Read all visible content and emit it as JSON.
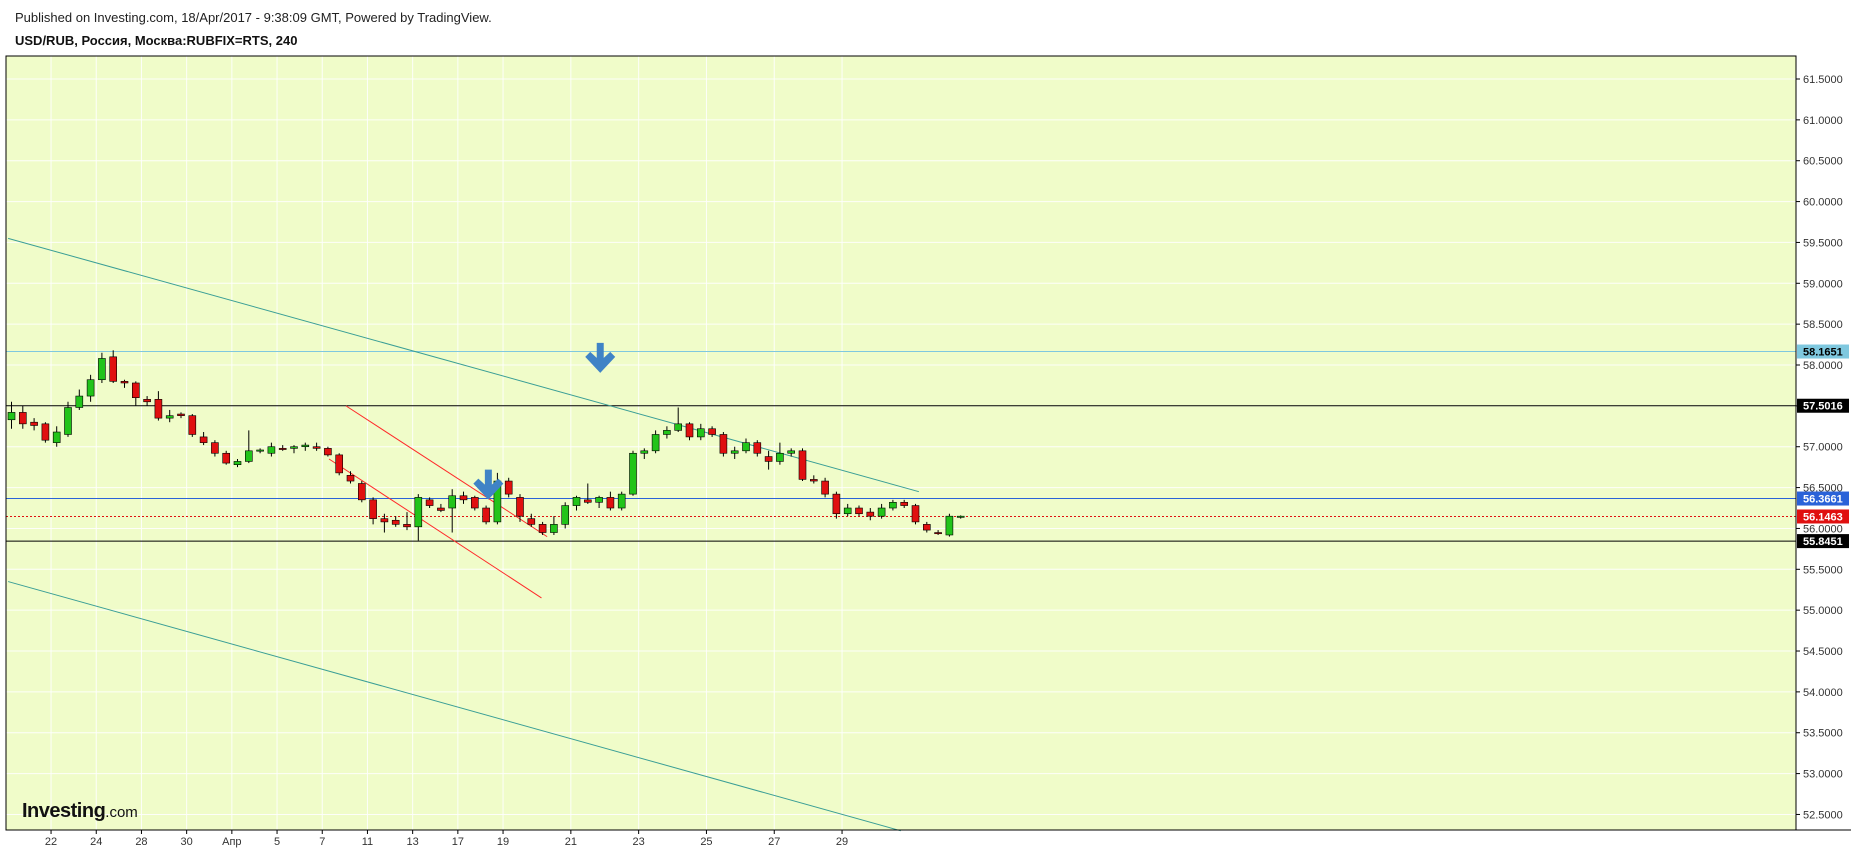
{
  "header": {
    "published": "Published on Investing.com, 18/Apr/2017 - 9:38:09 GMT, Powered by TradingView.",
    "symbol": "USD/RUB, Россия, Москва:RUBFIX=RTS, 240"
  },
  "logo": {
    "brand": "Investing",
    "suffix": ".com"
  },
  "colors": {
    "plot_bg": "#f0fcc9",
    "up": "#22c41a",
    "down": "#e01010",
    "channel_long": "#3a9e96",
    "channel_short": "#ff2a2a",
    "hline_black": "#000000",
    "hline_blue": "#2a62d8",
    "hline_lightblue": "#7fc8df",
    "arrow": "#3f83c6"
  },
  "chart_data": {
    "type": "candlestick",
    "title": "USD/RUB, Россия, Москва:RUBFIX=RTS, 240",
    "ylim": [
      52.25,
      61.75
    ],
    "y_ticks": [
      "52.5000",
      "53.0000",
      "53.5000",
      "54.0000",
      "54.5000",
      "55.0000",
      "55.5000",
      "56.0000",
      "56.5000",
      "57.0000",
      "57.5000",
      "58.0000",
      "58.5000",
      "59.0000",
      "59.5000",
      "60.0000",
      "60.5000",
      "61.0000",
      "61.5000"
    ],
    "x_ticks": [
      {
        "label": "22",
        "i": 3.5
      },
      {
        "label": "24",
        "i": 7.5
      },
      {
        "label": "28",
        "i": 11.5
      },
      {
        "label": "30",
        "i": 15.5
      },
      {
        "label": "Апр",
        "i": 19.5
      },
      {
        "label": "5",
        "i": 23.5
      },
      {
        "label": "7",
        "i": 27.5
      },
      {
        "label": "11",
        "i": 31.5
      },
      {
        "label": "13",
        "i": 35.5
      },
      {
        "label": "17",
        "i": 39.5
      },
      {
        "label": "19",
        "i": 43.5
      },
      {
        "label": "21",
        "i": 49.5
      },
      {
        "label": "23",
        "i": 55.5
      },
      {
        "label": "25",
        "i": 61.5
      },
      {
        "label": "27",
        "i": 67.5
      },
      {
        "label": "29",
        "i": 73.5
      }
    ],
    "price_tags": [
      {
        "value": 58.1651,
        "label": "58.1651",
        "bg": "#7fc8df",
        "fg": "#000000"
      },
      {
        "value": 57.5016,
        "label": "57.5016",
        "bg": "#000000",
        "fg": "#ffffff"
      },
      {
        "value": 56.3661,
        "label": "56.3661",
        "bg": "#2a62d8",
        "fg": "#ffffff"
      },
      {
        "value": 56.1463,
        "label": "56.1463",
        "bg": "#e01010",
        "fg": "#ffffff"
      },
      {
        "value": 55.8451,
        "label": "55.8451",
        "bg": "#000000",
        "fg": "#ffffff"
      }
    ],
    "horizontal_lines": [
      {
        "value": 58.1651,
        "color": "#7fc8df",
        "dash": false
      },
      {
        "value": 57.5016,
        "color": "#000000",
        "dash": false
      },
      {
        "value": 56.3661,
        "color": "#2a62d8",
        "dash": false
      },
      {
        "value": 56.1463,
        "color": "#e01010",
        "dash": true
      },
      {
        "value": 55.8451,
        "color": "#000000",
        "dash": false
      }
    ],
    "trend_lines": [
      {
        "from": {
          "i": -0.3,
          "y": 59.55
        },
        "to": {
          "i": 80.3,
          "y": 56.45
        },
        "color": "#3a9e96"
      },
      {
        "from": {
          "i": -0.3,
          "y": 55.35
        },
        "to": {
          "i": 78.7,
          "y": 52.3
        },
        "color": "#3a9e96"
      },
      {
        "from": {
          "i": 29.6,
          "y": 57.5
        },
        "to": {
          "i": 47.4,
          "y": 55.9
        },
        "color": "#ff2a2a"
      },
      {
        "from": {
          "i": 28.1,
          "y": 56.85
        },
        "to": {
          "i": 46.9,
          "y": 55.15
        },
        "color": "#ff2a2a"
      }
    ],
    "arrows": [
      {
        "i": 52.1,
        "y": 58.05
      },
      {
        "i": 42.2,
        "y": 56.5
      }
    ],
    "candles": [
      {
        "o": 57.33,
        "h": 57.55,
        "l": 57.22,
        "c": 57.42
      },
      {
        "o": 57.42,
        "h": 57.5,
        "l": 57.22,
        "c": 57.28
      },
      {
        "o": 57.3,
        "h": 57.35,
        "l": 57.2,
        "c": 57.26
      },
      {
        "o": 57.28,
        "h": 57.3,
        "l": 57.05,
        "c": 57.08
      },
      {
        "o": 57.05,
        "h": 57.25,
        "l": 57.0,
        "c": 57.18
      },
      {
        "o": 57.15,
        "h": 57.55,
        "l": 57.12,
        "c": 57.48
      },
      {
        "o": 57.48,
        "h": 57.7,
        "l": 57.45,
        "c": 57.62
      },
      {
        "o": 57.62,
        "h": 57.88,
        "l": 57.55,
        "c": 57.82
      },
      {
        "o": 57.82,
        "h": 58.15,
        "l": 57.78,
        "c": 58.08
      },
      {
        "o": 58.1,
        "h": 58.18,
        "l": 57.78,
        "c": 57.8
      },
      {
        "o": 57.8,
        "h": 57.82,
        "l": 57.72,
        "c": 57.78
      },
      {
        "o": 57.78,
        "h": 57.8,
        "l": 57.5,
        "c": 57.6
      },
      {
        "o": 57.58,
        "h": 57.62,
        "l": 57.5,
        "c": 57.55
      },
      {
        "o": 57.58,
        "h": 57.68,
        "l": 57.32,
        "c": 57.35
      },
      {
        "o": 57.35,
        "h": 57.45,
        "l": 57.3,
        "c": 57.38
      },
      {
        "o": 57.4,
        "h": 57.42,
        "l": 57.35,
        "c": 57.38
      },
      {
        "o": 57.38,
        "h": 57.4,
        "l": 57.12,
        "c": 57.15
      },
      {
        "o": 57.12,
        "h": 57.18,
        "l": 57.02,
        "c": 57.05
      },
      {
        "o": 57.05,
        "h": 57.08,
        "l": 56.88,
        "c": 56.92
      },
      {
        "o": 56.92,
        "h": 56.95,
        "l": 56.78,
        "c": 56.8
      },
      {
        "o": 56.78,
        "h": 56.85,
        "l": 56.75,
        "c": 56.82
      },
      {
        "o": 56.82,
        "h": 57.2,
        "l": 56.8,
        "c": 56.95
      },
      {
        "o": 56.95,
        "h": 56.98,
        "l": 56.92,
        "c": 56.96
      },
      {
        "o": 56.92,
        "h": 57.05,
        "l": 56.88,
        "c": 57.0
      },
      {
        "o": 56.98,
        "h": 57.02,
        "l": 56.95,
        "c": 56.97
      },
      {
        "o": 56.98,
        "h": 57.02,
        "l": 56.92,
        "c": 57.0
      },
      {
        "o": 57.0,
        "h": 57.05,
        "l": 56.95,
        "c": 57.02
      },
      {
        "o": 57.0,
        "h": 57.05,
        "l": 56.95,
        "c": 56.98
      },
      {
        "o": 56.98,
        "h": 57.0,
        "l": 56.88,
        "c": 56.9
      },
      {
        "o": 56.9,
        "h": 56.92,
        "l": 56.65,
        "c": 56.68
      },
      {
        "o": 56.65,
        "h": 56.7,
        "l": 56.55,
        "c": 56.58
      },
      {
        "o": 56.55,
        "h": 56.58,
        "l": 56.32,
        "c": 56.35
      },
      {
        "o": 56.35,
        "h": 56.38,
        "l": 56.05,
        "c": 56.12
      },
      {
        "o": 56.12,
        "h": 56.18,
        "l": 55.95,
        "c": 56.08
      },
      {
        "o": 56.1,
        "h": 56.15,
        "l": 56.02,
        "c": 56.05
      },
      {
        "o": 56.05,
        "h": 56.2,
        "l": 55.98,
        "c": 56.02
      },
      {
        "o": 56.02,
        "h": 56.42,
        "l": 55.85,
        "c": 56.38
      },
      {
        "o": 56.35,
        "h": 56.38,
        "l": 56.25,
        "c": 56.28
      },
      {
        "o": 56.25,
        "h": 56.3,
        "l": 56.2,
        "c": 56.22
      },
      {
        "o": 56.25,
        "h": 56.48,
        "l": 55.95,
        "c": 56.4
      },
      {
        "o": 56.4,
        "h": 56.45,
        "l": 56.3,
        "c": 56.35
      },
      {
        "o": 56.38,
        "h": 56.4,
        "l": 56.22,
        "c": 56.25
      },
      {
        "o": 56.25,
        "h": 56.28,
        "l": 56.05,
        "c": 56.08
      },
      {
        "o": 56.08,
        "h": 56.68,
        "l": 56.05,
        "c": 56.58
      },
      {
        "o": 56.58,
        "h": 56.62,
        "l": 56.38,
        "c": 56.42
      },
      {
        "o": 56.38,
        "h": 56.42,
        "l": 56.08,
        "c": 56.15
      },
      {
        "o": 56.12,
        "h": 56.18,
        "l": 56.02,
        "c": 56.05
      },
      {
        "o": 56.05,
        "h": 56.08,
        "l": 55.92,
        "c": 55.95
      },
      {
        "o": 55.95,
        "h": 56.15,
        "l": 55.92,
        "c": 56.05
      },
      {
        "o": 56.05,
        "h": 56.32,
        "l": 56.0,
        "c": 56.28
      },
      {
        "o": 56.28,
        "h": 56.4,
        "l": 56.22,
        "c": 56.38
      },
      {
        "o": 56.35,
        "h": 56.55,
        "l": 56.3,
        "c": 56.32
      },
      {
        "o": 56.32,
        "h": 56.4,
        "l": 56.25,
        "c": 56.38
      },
      {
        "o": 56.38,
        "h": 56.45,
        "l": 56.22,
        "c": 56.25
      },
      {
        "o": 56.25,
        "h": 56.45,
        "l": 56.22,
        "c": 56.42
      },
      {
        "o": 56.42,
        "h": 56.95,
        "l": 56.4,
        "c": 56.92
      },
      {
        "o": 56.92,
        "h": 56.98,
        "l": 56.85,
        "c": 56.95
      },
      {
        "o": 56.95,
        "h": 57.2,
        "l": 56.92,
        "c": 57.15
      },
      {
        "o": 57.15,
        "h": 57.25,
        "l": 57.1,
        "c": 57.2
      },
      {
        "o": 57.2,
        "h": 57.48,
        "l": 57.18,
        "c": 57.28
      },
      {
        "o": 57.28,
        "h": 57.3,
        "l": 57.08,
        "c": 57.12
      },
      {
        "o": 57.12,
        "h": 57.28,
        "l": 57.08,
        "c": 57.22
      },
      {
        "o": 57.22,
        "h": 57.25,
        "l": 57.12,
        "c": 57.15
      },
      {
        "o": 57.15,
        "h": 57.18,
        "l": 56.88,
        "c": 56.92
      },
      {
        "o": 56.92,
        "h": 57.0,
        "l": 56.85,
        "c": 56.95
      },
      {
        "o": 56.95,
        "h": 57.1,
        "l": 56.92,
        "c": 57.05
      },
      {
        "o": 57.05,
        "h": 57.08,
        "l": 56.88,
        "c": 56.92
      },
      {
        "o": 56.88,
        "h": 56.95,
        "l": 56.72,
        "c": 56.82
      },
      {
        "o": 56.82,
        "h": 57.05,
        "l": 56.78,
        "c": 56.92
      },
      {
        "o": 56.92,
        "h": 56.98,
        "l": 56.88,
        "c": 56.95
      },
      {
        "o": 56.95,
        "h": 56.98,
        "l": 56.58,
        "c": 56.6
      },
      {
        "o": 56.6,
        "h": 56.65,
        "l": 56.55,
        "c": 56.58
      },
      {
        "o": 56.58,
        "h": 56.62,
        "l": 56.38,
        "c": 56.42
      },
      {
        "o": 56.42,
        "h": 56.45,
        "l": 56.12,
        "c": 56.18
      },
      {
        "o": 56.18,
        "h": 56.3,
        "l": 56.15,
        "c": 56.25
      },
      {
        "o": 56.25,
        "h": 56.28,
        "l": 56.15,
        "c": 56.18
      },
      {
        "o": 56.2,
        "h": 56.25,
        "l": 56.1,
        "c": 56.15
      },
      {
        "o": 56.15,
        "h": 56.3,
        "l": 56.12,
        "c": 56.25
      },
      {
        "o": 56.25,
        "h": 56.35,
        "l": 56.22,
        "c": 56.32
      },
      {
        "o": 56.32,
        "h": 56.35,
        "l": 56.25,
        "c": 56.28
      },
      {
        "o": 56.28,
        "h": 56.3,
        "l": 56.05,
        "c": 56.08
      },
      {
        "o": 56.05,
        "h": 56.08,
        "l": 55.95,
        "c": 55.98
      },
      {
        "o": 55.95,
        "h": 55.98,
        "l": 55.92,
        "c": 55.94
      },
      {
        "o": 55.92,
        "h": 56.18,
        "l": 55.9,
        "c": 56.15
      },
      {
        "o": 56.14,
        "h": 56.16,
        "l": 56.12,
        "c": 56.15
      }
    ]
  }
}
